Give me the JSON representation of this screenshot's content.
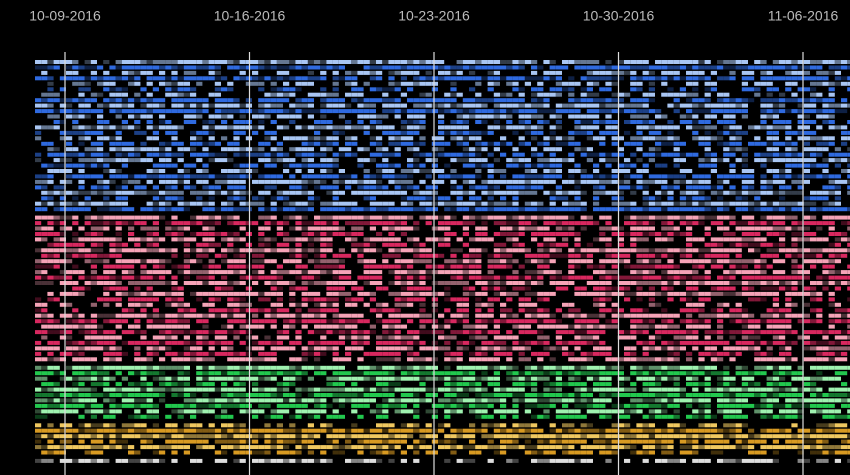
{
  "chart_data": {
    "type": "heatmap",
    "xticks": [
      "10-09-2016",
      "10-16-2016",
      "10-23-2016",
      "10-30-2016",
      "11-06-2016"
    ],
    "groups": [
      {
        "color": "#2f6ae0",
        "light": "#a9c6f3",
        "rows": 28
      },
      {
        "color": "#d8285f",
        "light": "#f5a3b7",
        "rows": 27
      },
      {
        "color": "#22c84e",
        "light": "#9ff2b0",
        "rows": 10
      },
      {
        "color": "#d89a22",
        "light": "#f0c860",
        "rows": 6
      },
      {
        "color": "#bbbbbb",
        "light": "#dddddd",
        "rows": 1
      }
    ],
    "grid": true
  }
}
